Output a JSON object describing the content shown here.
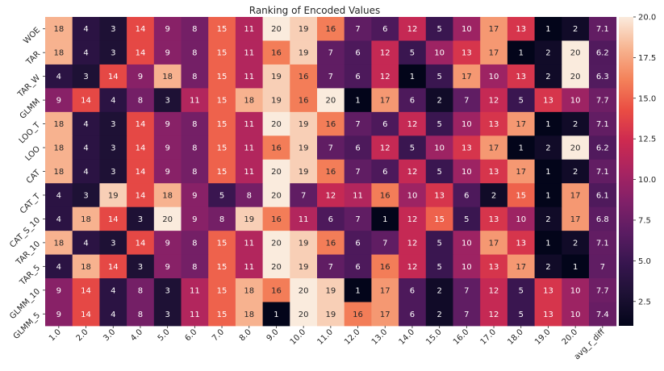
{
  "chart_data": {
    "type": "heatmap",
    "title": "Ranking of Encoded Values",
    "rows": [
      "WOE",
      "TAR",
      "TAR_W",
      "GLMM",
      "LOO_T",
      "LOO",
      "CAT",
      "CAT_T",
      "CAT_S_10",
      "TAR_10",
      "TAR_5",
      "GLMM_10",
      "GLMM_5"
    ],
    "columns": [
      "1.0",
      "2.0",
      "3.0",
      "4.0",
      "5.0",
      "6.0",
      "7.0",
      "8.0",
      "9.0",
      "10.0",
      "11.0",
      "12.0",
      "13.0",
      "14.0",
      "15.0",
      "16.0",
      "17.0",
      "18.0",
      "19.0",
      "20.0",
      "avg_r_diff"
    ],
    "values": [
      [
        18,
        4,
        3,
        14,
        9,
        8,
        15,
        11,
        20,
        19,
        16,
        7,
        6,
        12,
        5,
        10,
        17,
        13,
        1,
        2,
        7.1
      ],
      [
        18,
        4,
        3,
        14,
        9,
        8,
        15,
        11,
        16,
        19,
        7,
        6,
        12,
        5,
        10,
        13,
        17,
        1,
        2,
        20,
        6.2
      ],
      [
        4,
        3,
        14,
        9,
        18,
        8,
        15,
        11,
        19,
        16,
        7,
        6,
        12,
        1,
        5,
        17,
        10,
        13,
        2,
        20,
        6.3
      ],
      [
        9,
        14,
        4,
        8,
        3,
        11,
        15,
        18,
        19,
        16,
        20,
        1,
        17,
        6,
        2,
        7,
        12,
        5,
        13,
        10,
        7.7
      ],
      [
        18,
        4,
        3,
        14,
        9,
        8,
        15,
        11,
        20,
        19,
        16,
        7,
        6,
        12,
        5,
        10,
        13,
        17,
        1,
        2,
        7.1
      ],
      [
        18,
        4,
        3,
        14,
        9,
        8,
        15,
        11,
        16,
        19,
        7,
        6,
        12,
        5,
        10,
        13,
        17,
        1,
        2,
        20,
        6.2
      ],
      [
        18,
        4,
        3,
        14,
        9,
        8,
        15,
        11,
        20,
        19,
        16,
        7,
        6,
        12,
        5,
        10,
        13,
        17,
        1,
        2,
        7.1
      ],
      [
        4,
        3,
        19,
        14,
        18,
        9,
        5,
        8,
        20,
        7,
        12,
        11,
        16,
        10,
        13,
        6,
        2,
        15,
        1,
        17,
        6.1
      ],
      [
        4,
        18,
        14,
        3,
        20,
        9,
        8,
        19,
        16,
        11,
        6,
        7,
        1,
        12,
        15,
        5,
        13,
        10,
        2,
        17,
        6.8
      ],
      [
        18,
        4,
        3,
        14,
        9,
        8,
        15,
        11,
        20,
        19,
        16,
        6,
        7,
        12,
        5,
        10,
        17,
        13,
        1,
        2,
        7.1
      ],
      [
        4,
        18,
        14,
        3,
        9,
        8,
        15,
        11,
        20,
        19,
        7,
        6,
        16,
        12,
        5,
        10,
        13,
        17,
        2,
        1,
        7
      ],
      [
        9,
        14,
        4,
        8,
        3,
        11,
        15,
        18,
        16,
        20,
        19,
        1,
        17,
        6,
        2,
        7,
        12,
        5,
        13,
        10,
        7.7
      ],
      [
        9,
        14,
        4,
        8,
        3,
        11,
        15,
        18,
        1,
        20,
        19,
        16,
        17,
        6,
        2,
        7,
        12,
        5,
        13,
        10,
        7.4
      ]
    ],
    "colormap": "rocket",
    "vmin": 1,
    "vmax": 20,
    "colorbar_ticks": [
      "2.5",
      "5.0",
      "7.5",
      "10.0",
      "12.5",
      "15.0",
      "17.5",
      "20.0"
    ],
    "colorbar_tick_values": [
      2.5,
      5.0,
      7.5,
      10.0,
      12.5,
      15.0,
      17.5,
      20.0
    ],
    "annotate": true,
    "grid": false,
    "legend": "colorbar-right"
  }
}
